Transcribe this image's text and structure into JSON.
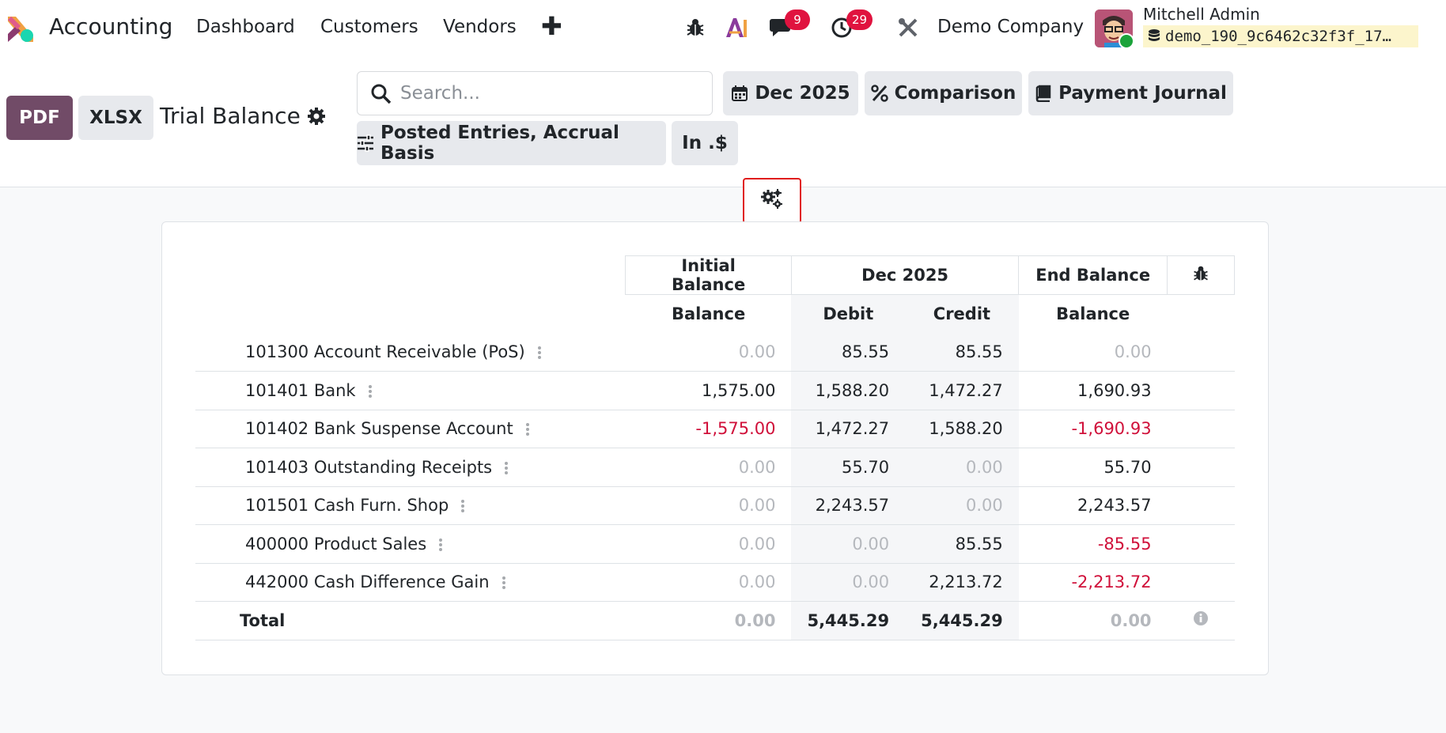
{
  "navbar": {
    "app_name": "Accounting",
    "menu": [
      {
        "label": "Dashboard"
      },
      {
        "label": "Customers"
      },
      {
        "label": "Vendors"
      }
    ],
    "plus": "✚",
    "messages_count": "9",
    "activities_count": "29",
    "company": "Demo Company",
    "user_name": "Mitchell Admin",
    "database": "demo_190_9c6462c32f3f_17…"
  },
  "control": {
    "pdf_label": "PDF",
    "xlsx_label": "XLSX",
    "title": "Trial Balance",
    "search_placeholder": "Search...",
    "date_filter": "Dec 2025",
    "comparison": "Comparison",
    "journal": "Payment Journal",
    "options": "Posted Entries, Accrual Basis",
    "currency": "In .$"
  },
  "report": {
    "header_groups": [
      "Initial Balance",
      "Dec 2025",
      "End Balance"
    ],
    "subheaders": [
      "Balance",
      "Debit",
      "Credit",
      "Balance"
    ],
    "rows": [
      {
        "account": "101300 Account Receivable (PoS)",
        "initial": "0.00",
        "debit": "85.55",
        "credit": "85.55",
        "end": "0.00"
      },
      {
        "account": "101401 Bank",
        "initial": "1,575.00",
        "debit": "1,588.20",
        "credit": "1,472.27",
        "end": "1,690.93"
      },
      {
        "account": "101402 Bank Suspense Account",
        "initial": "-1,575.00",
        "debit": "1,472.27",
        "credit": "1,588.20",
        "end": "-1,690.93"
      },
      {
        "account": "101403 Outstanding Receipts",
        "initial": "0.00",
        "debit": "55.70",
        "credit": "0.00",
        "end": "55.70"
      },
      {
        "account": "101501 Cash Furn. Shop",
        "initial": "0.00",
        "debit": "2,243.57",
        "credit": "0.00",
        "end": "2,243.57"
      },
      {
        "account": "400000 Product Sales",
        "initial": "0.00",
        "debit": "0.00",
        "credit": "85.55",
        "end": "-85.55"
      },
      {
        "account": "442000 Cash Difference Gain",
        "initial": "0.00",
        "debit": "0.00",
        "credit": "2,213.72",
        "end": "-2,213.72"
      }
    ],
    "total": {
      "label": "Total",
      "initial": "0.00",
      "debit": "5,445.29",
      "credit": "5,445.29",
      "end": "0.00"
    }
  },
  "colors": {
    "brand": "#714b67",
    "negative": "#d0103a",
    "badge": "#e0133f",
    "highlight": "#e01c1c"
  },
  "icons": [
    "bug-icon",
    "ai-icon",
    "chat-icon",
    "clock-icon",
    "tools-icon",
    "gear-icon",
    "search-icon",
    "calendar-icon",
    "percent-icon",
    "book-icon",
    "sliders-icon",
    "gears-icon",
    "info-icon"
  ]
}
